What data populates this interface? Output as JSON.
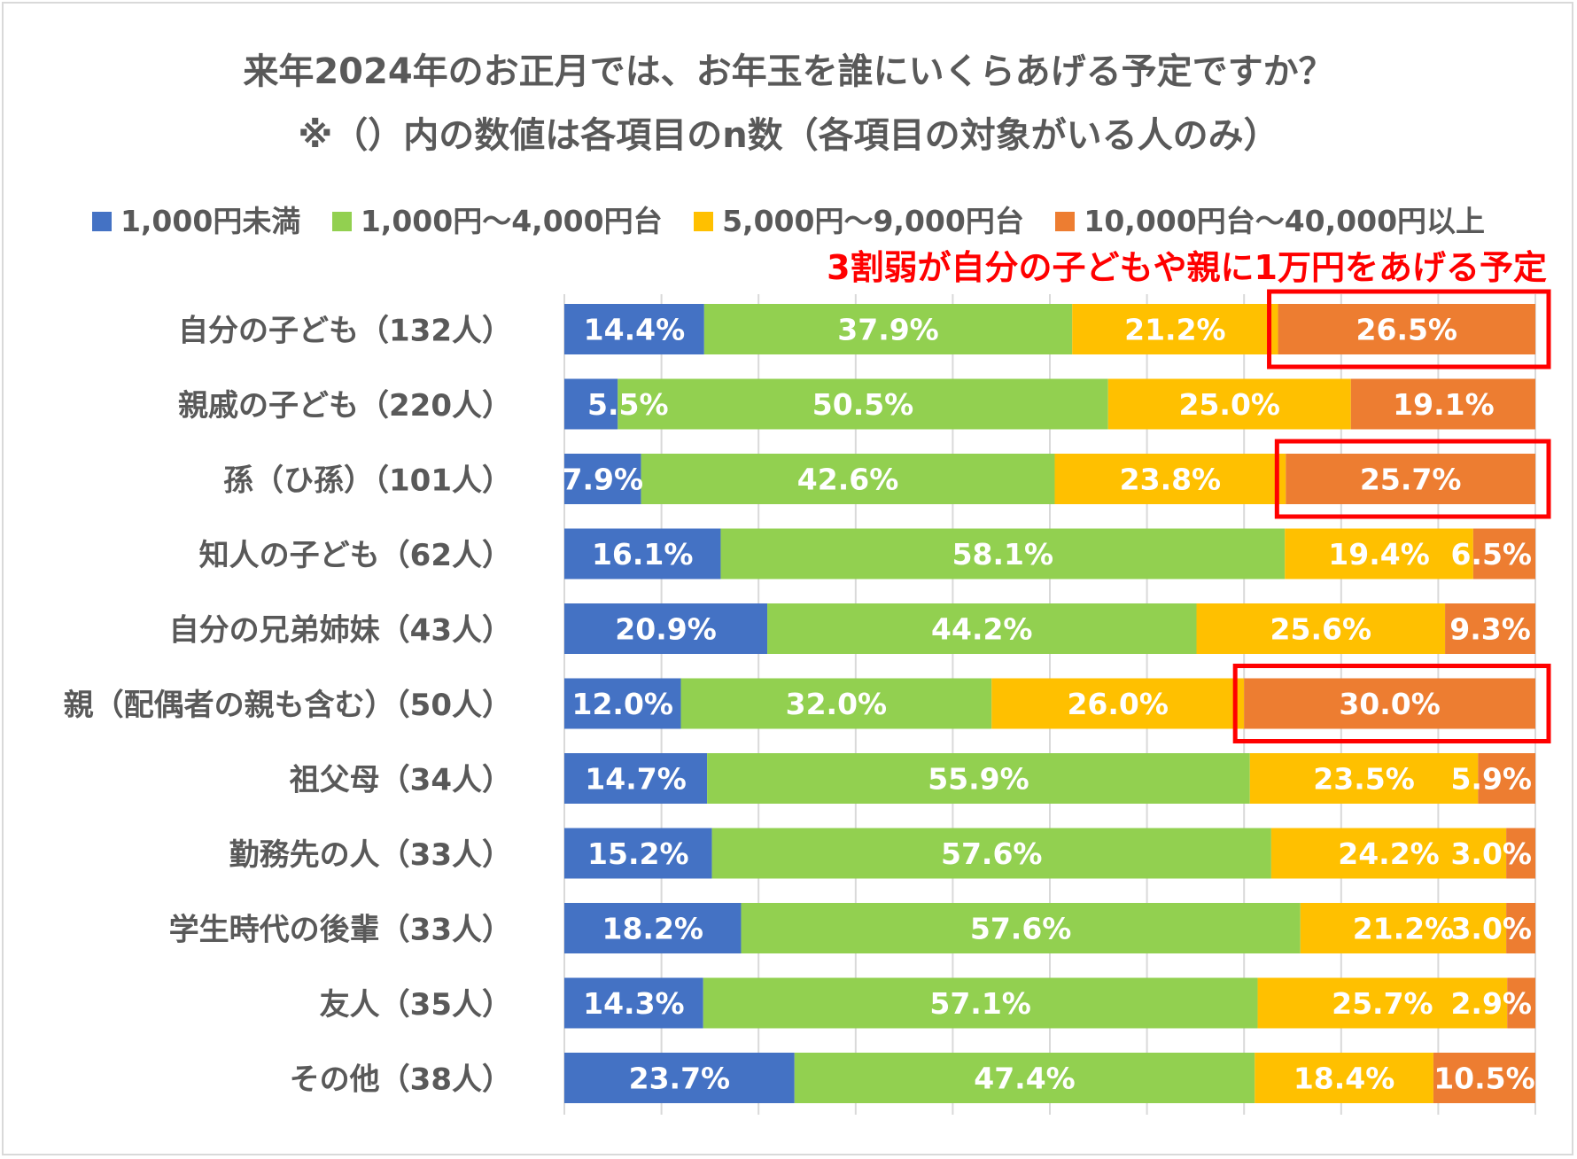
{
  "chart_data": {
    "type": "bar",
    "orientation": "horizontal",
    "stacked": true,
    "title": "来年2024年のお正月では、お年玉を誰にいくらあげる予定ですか？",
    "subtitle": "※（）内の数値は各項目のn数（各項目の対象がいる人のみ）",
    "annotation": "3割弱が自分の子どもや親に1万円をあげる予定",
    "categories": [
      "自分の子ども（132人）",
      "親戚の子ども（220人）",
      "孫（ひ孫）（101人）",
      "知人の子ども（62人）",
      "自分の兄弟姉妹（43人）",
      "親（配偶者の親も含む）（50人）",
      "祖父母（34人）",
      "勤務先の人（33人）",
      "学生時代の後輩（33人）",
      "友人（35人）",
      "その他（38人）"
    ],
    "series": [
      {
        "name": "1,000円未満",
        "color": "#4472c4",
        "values": [
          14.4,
          5.5,
          7.9,
          16.1,
          20.9,
          12.0,
          14.7,
          15.2,
          18.2,
          14.3,
          23.7
        ],
        "labels": [
          "14.4%",
          "5.5%",
          "7.9%",
          "16.1%",
          "20.9%",
          "12.0%",
          "14.7%",
          "15.2%",
          "18.2%",
          "14.3%",
          "23.7%"
        ]
      },
      {
        "name": "1,000円～4,000円台",
        "color": "#92d050",
        "values": [
          37.9,
          50.5,
          42.6,
          58.1,
          44.2,
          32.0,
          55.9,
          57.6,
          57.6,
          57.1,
          47.4
        ],
        "labels": [
          "37.9%",
          "50.5%",
          "42.6%",
          "58.1%",
          "44.2%",
          "32.0%",
          "55.9%",
          "57.6%",
          "57.6%",
          "57.1%",
          "47.4%"
        ]
      },
      {
        "name": "5,000円～9,000円台",
        "color": "#ffc000",
        "values": [
          21.2,
          25.0,
          23.8,
          19.4,
          25.6,
          26.0,
          23.5,
          24.2,
          21.2,
          25.7,
          18.4
        ],
        "labels": [
          "21.2%",
          "25.0%",
          "23.8%",
          "19.4%",
          "25.6%",
          "26.0%",
          "23.5%",
          "24.2%",
          "21.2%",
          "25.7%",
          "18.4%"
        ]
      },
      {
        "name": "10,000円台～40,000円以上",
        "color": "#ed7d31",
        "values": [
          26.5,
          19.1,
          25.7,
          6.5,
          9.3,
          30.0,
          5.9,
          3.0,
          3.0,
          2.9,
          10.5
        ],
        "labels": [
          "26.5%",
          "19.1%",
          "25.7%",
          "6.5%",
          "9.3%",
          "30.0%",
          "5.9%",
          "3.0%",
          "3.0%",
          "2.9%",
          "10.5%"
        ]
      }
    ],
    "xlim": [
      0,
      100
    ],
    "gridlines": "vertical",
    "legend_position": "top",
    "highlighted_categories": [
      0,
      2,
      5
    ],
    "highlight_color": "#ff0000"
  }
}
